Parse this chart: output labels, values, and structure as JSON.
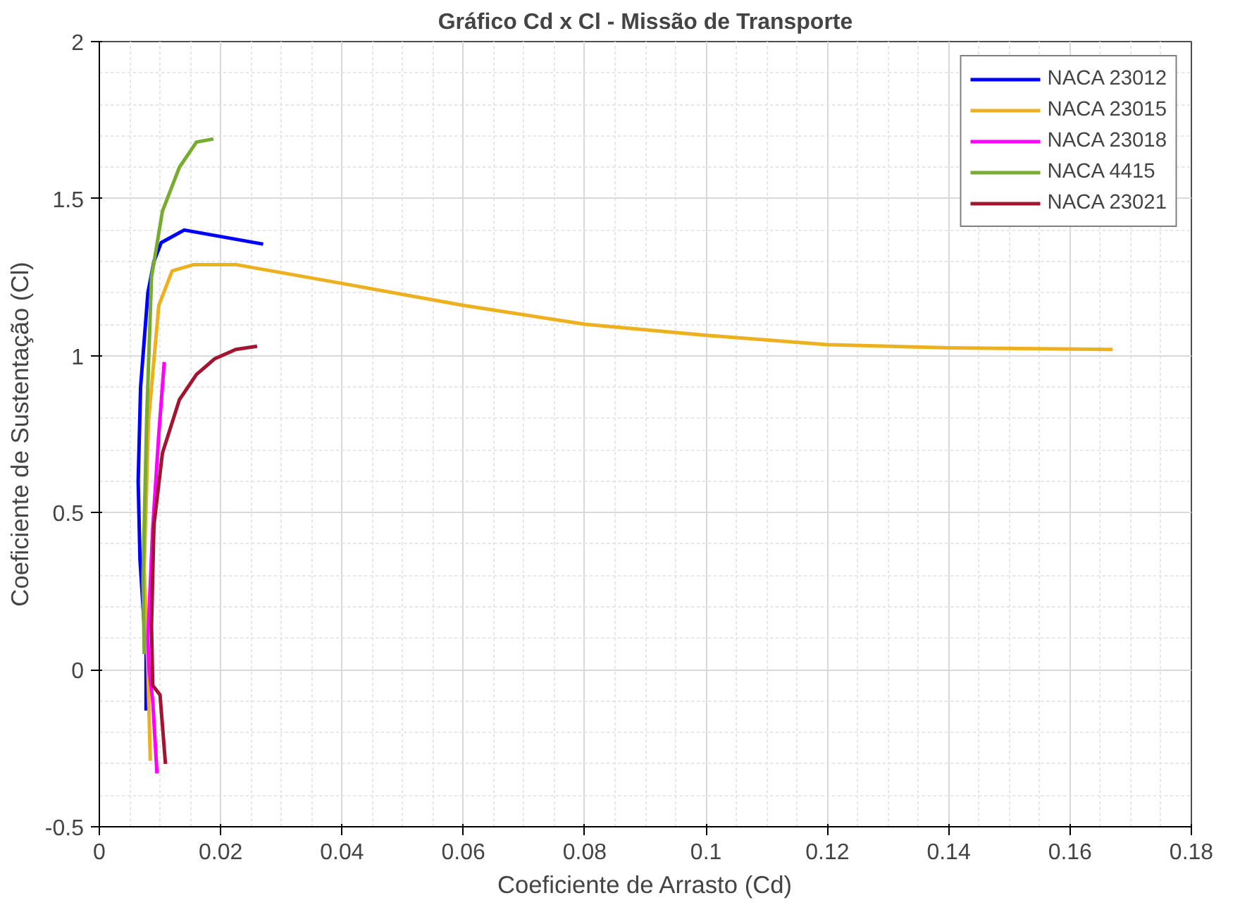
{
  "chart_data": {
    "type": "line",
    "title": "Gráfico Cd x Cl - Missão de Transporte",
    "xlabel": "Coeficiente de Arrasto (Cd)",
    "ylabel": "Coeficiente de Sustentação (Cl)",
    "xlim": [
      0,
      0.18
    ],
    "ylim": [
      -0.5,
      2
    ],
    "xticks": [
      0,
      0.02,
      0.04,
      0.06,
      0.08,
      0.1,
      0.12,
      0.14,
      0.16,
      0.18
    ],
    "yticks": [
      -0.5,
      0,
      0.5,
      1,
      1.5,
      2
    ],
    "grid": true,
    "legend": "top right",
    "line_style": "solid",
    "marker": "none",
    "series": [
      {
        "name": "NACA 23012",
        "color": "#0000ff",
        "x": [
          0.0077,
          0.0077,
          0.0067,
          0.0064,
          0.0068,
          0.008,
          0.009,
          0.0102,
          0.014,
          0.027
        ],
        "values": [
          -0.13,
          0.05,
          0.35,
          0.6,
          0.9,
          1.2,
          1.3,
          1.36,
          1.4,
          1.355
        ]
      },
      {
        "name": "NACA 23015",
        "color": "#edb120",
        "x": [
          0.0084,
          0.008,
          0.0074,
          0.0081,
          0.0098,
          0.012,
          0.0156,
          0.0225,
          0.04,
          0.06,
          0.08,
          0.1,
          0.12,
          0.14,
          0.167
        ],
        "values": [
          -0.29,
          0.0,
          0.32,
          0.79,
          1.16,
          1.27,
          1.29,
          1.29,
          1.23,
          1.16,
          1.1,
          1.065,
          1.035,
          1.025,
          1.02
        ]
      },
      {
        "name": "NACA 23018",
        "color": "#ff00ff",
        "x": [
          0.0095,
          0.0088,
          0.0082,
          0.008,
          0.0088,
          0.0098,
          0.0107
        ],
        "values": [
          -0.33,
          -0.1,
          0.0,
          0.1,
          0.45,
          0.75,
          0.98
        ]
      },
      {
        "name": "NACA 4415",
        "color": "#77ac30",
        "x": [
          0.0074,
          0.0072,
          0.0078,
          0.0086,
          0.0104,
          0.0132,
          0.016,
          0.0188
        ],
        "values": [
          0.05,
          0.29,
          0.8,
          1.25,
          1.46,
          1.6,
          1.68,
          1.69
        ]
      },
      {
        "name": "NACA 23021",
        "color": "#a2142f",
        "x": [
          0.0109,
          0.01,
          0.0088,
          0.0086,
          0.009,
          0.0104,
          0.0132,
          0.016,
          0.019,
          0.0225,
          0.026
        ],
        "values": [
          -0.3,
          -0.08,
          -0.05,
          0.14,
          0.46,
          0.69,
          0.86,
          0.94,
          0.99,
          1.02,
          1.03
        ]
      }
    ]
  }
}
